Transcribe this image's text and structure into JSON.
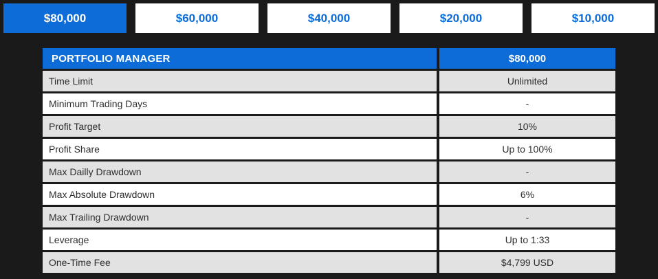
{
  "theme": {
    "background": "#1a1a1a",
    "accent_blue": "#0d6cd8",
    "row_alt_gray": "#e2e2e2",
    "row_white": "#ffffff",
    "row_text": "#2e2e2e",
    "header_text": "#ffffff"
  },
  "tabs": [
    {
      "label": "$80,000",
      "active": true
    },
    {
      "label": "$60,000",
      "active": false
    },
    {
      "label": "$40,000",
      "active": false
    },
    {
      "label": "$20,000",
      "active": false
    },
    {
      "label": "$10,000",
      "active": false
    }
  ],
  "table": {
    "header": {
      "title": "PORTFOLIO MANAGER",
      "plan": "$80,000"
    },
    "rows": [
      {
        "label": "Time Limit",
        "value": "Unlimited"
      },
      {
        "label": "Minimum Trading Days",
        "value": "-"
      },
      {
        "label": "Profit Target",
        "value": "10%"
      },
      {
        "label": "Profit Share",
        "value": "Up to 100%"
      },
      {
        "label": "Max Dailly Drawdown",
        "value": "-"
      },
      {
        "label": "Max Absolute Drawdown",
        "value": "6%"
      },
      {
        "label": "Max Trailing Drawdown",
        "value": "-"
      },
      {
        "label": "Leverage",
        "value": "Up to 1:33"
      },
      {
        "label": "One-Time Fee",
        "value": "$4,799 USD"
      }
    ]
  }
}
